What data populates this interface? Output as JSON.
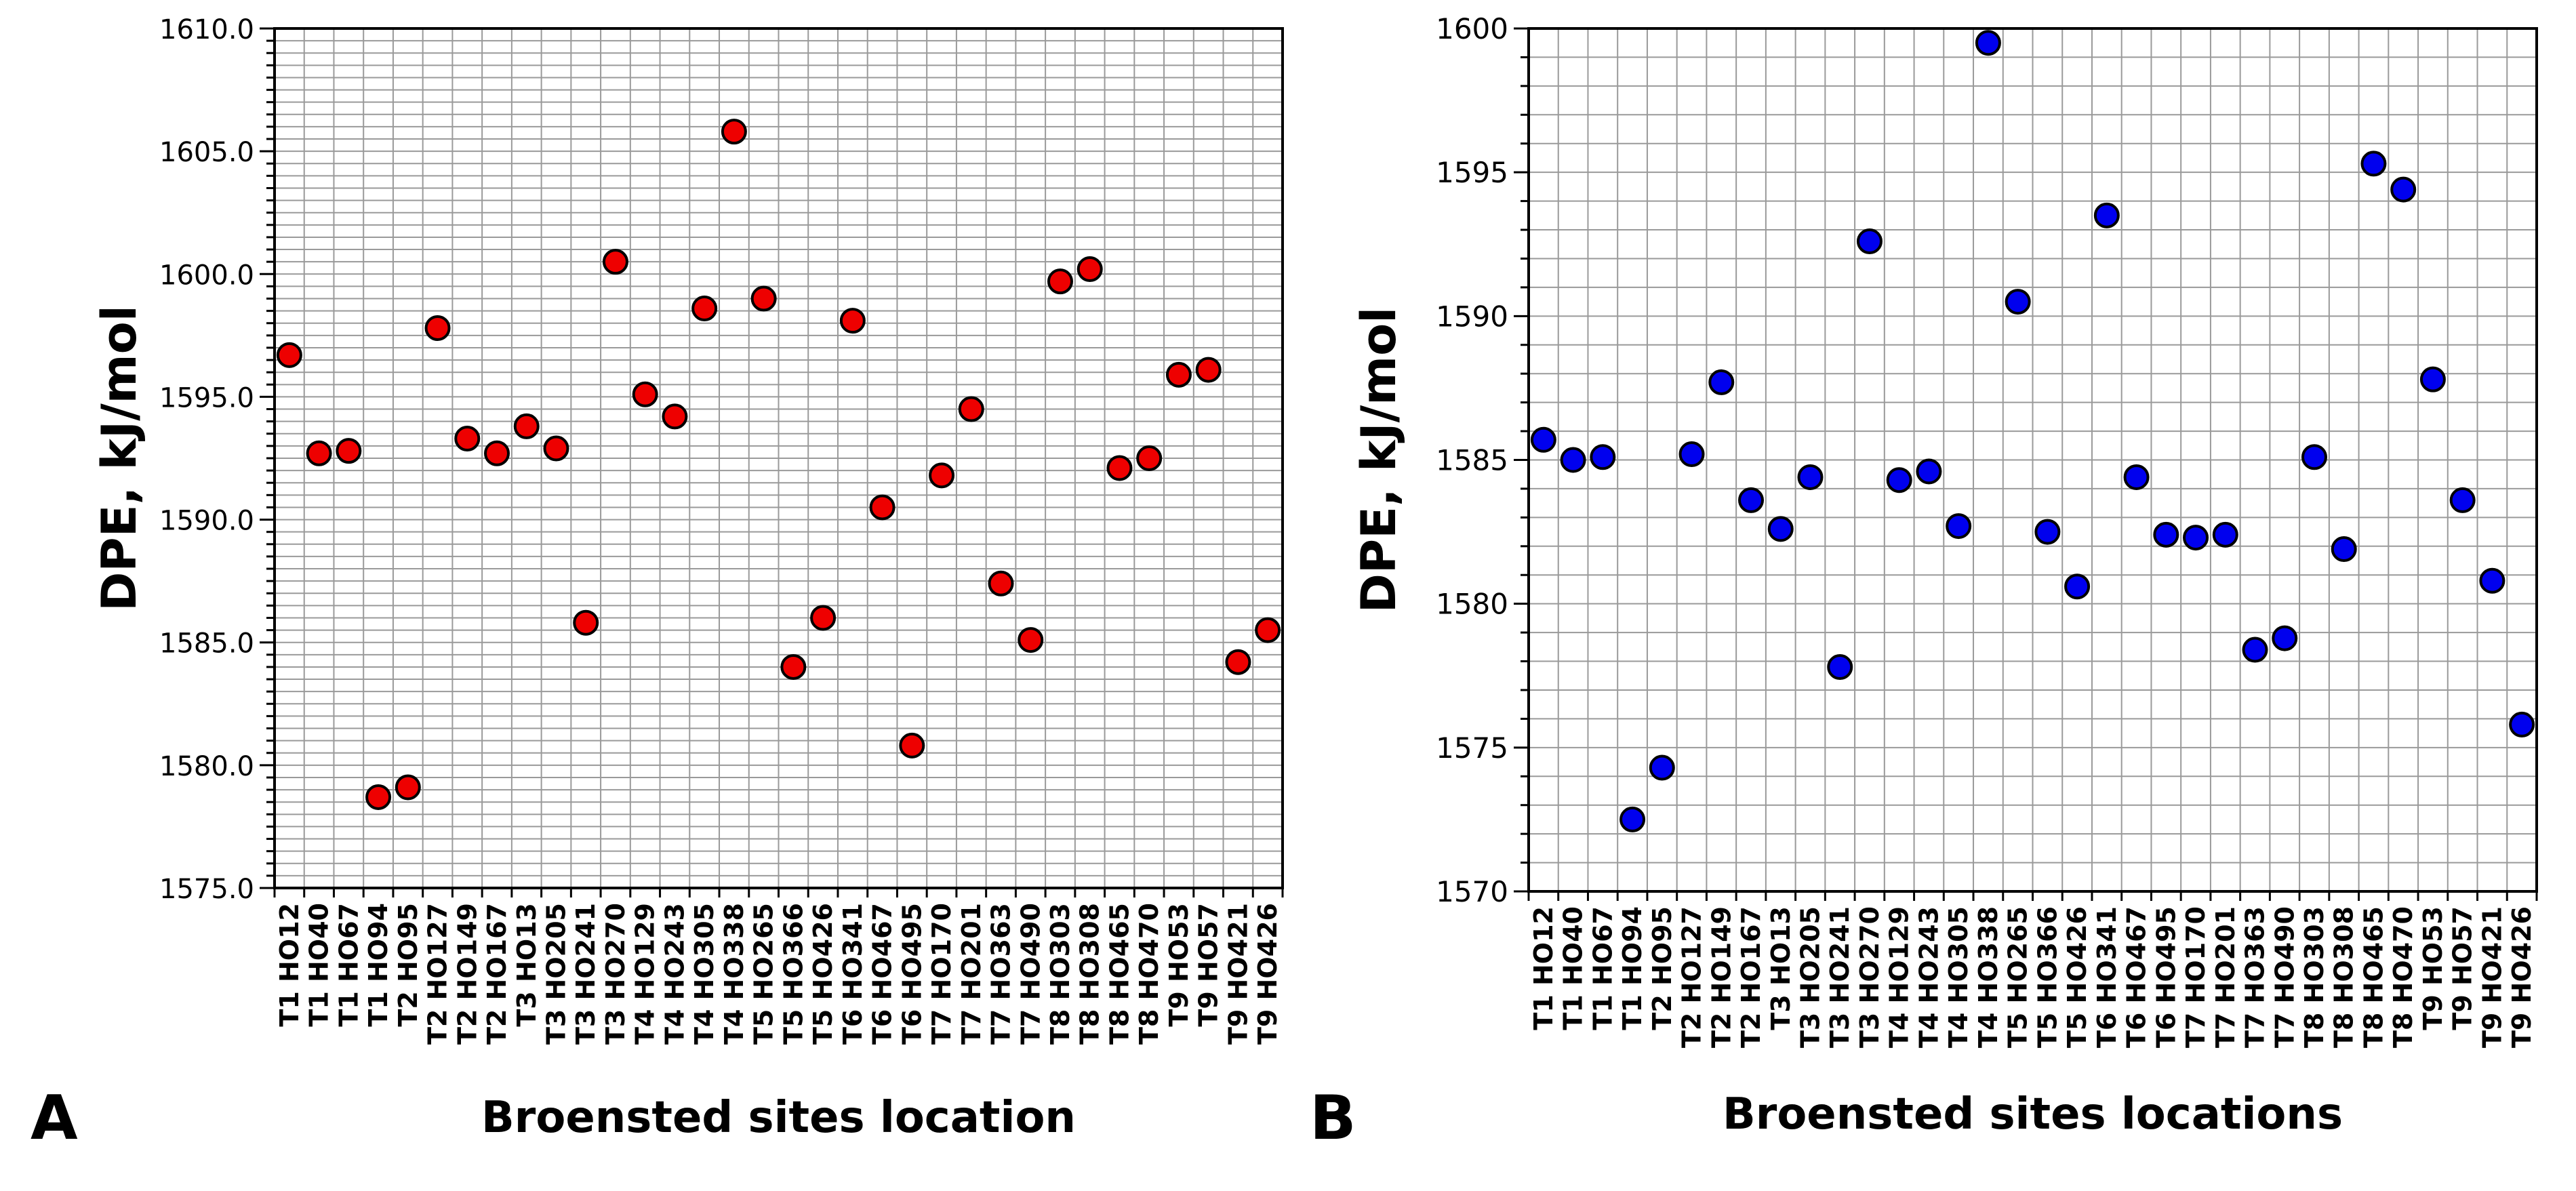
{
  "chart_data": [
    {
      "type": "scatter",
      "panel_label": "A",
      "xlabel": "Broensted sites location",
      "ylabel": "DPE, kJ/mol",
      "ylim": [
        1575.0,
        1610.0
      ],
      "ytick_labels": [
        "1575.0",
        "1580.0",
        "1585.0",
        "1590.0",
        "1595.0",
        "1600.0",
        "1605.0",
        "1610.0"
      ],
      "categories": [
        "T1 HO12",
        "T1 HO40",
        "T1 HO67",
        "T1 HO94",
        "T2 HO95",
        "T2 HO127",
        "T2 HO149",
        "T2 HO167",
        "T3 HO13",
        "T3 HO205",
        "T3 HO241",
        "T3 HO270",
        "T4 HO129",
        "T4 HO243",
        "T4 HO305",
        "T4 HO338",
        "T5 HO265",
        "T5 HO366",
        "T5 HO426",
        "T6 HO341",
        "T6 HO467",
        "T6 HO495",
        "T7 HO170",
        "T7 HO201",
        "T7 HO363",
        "T7 HO490",
        "T8 HO303",
        "T8 HO308",
        "T8 HO465",
        "T8 HO470",
        "T9 HO53",
        "T9 HO57",
        "T9 HO421",
        "T9 HO426"
      ],
      "values": [
        1596.7,
        1592.7,
        1592.8,
        1578.7,
        1579.1,
        1597.8,
        1593.3,
        1592.7,
        1593.8,
        1592.9,
        1585.8,
        1600.5,
        1595.1,
        1594.2,
        1598.6,
        1605.8,
        1599.0,
        1584.0,
        1586.0,
        1598.1,
        1590.5,
        1580.8,
        1591.8,
        1594.5,
        1587.4,
        1585.1,
        1599.7,
        1600.2,
        1592.1,
        1592.5,
        1595.9,
        1596.1,
        1584.2,
        1585.5
      ],
      "marker_color": "#ee0000",
      "grid": true
    },
    {
      "type": "scatter",
      "panel_label": "B",
      "xlabel": "Broensted sites locations",
      "ylabel": "DPE, kJ/mol",
      "ylim": [
        1570,
        1600
      ],
      "ytick_labels": [
        "1570",
        "1575",
        "1580",
        "1585",
        "1590",
        "1595",
        "1600"
      ],
      "categories": [
        "T1 HO12",
        "T1 HO40",
        "T1 HO67",
        "T1 HO94",
        "T2 HO95",
        "T2 HO127",
        "T2 HO149",
        "T2 HO167",
        "T3 HO13",
        "T3 HO205",
        "T3 HO241",
        "T3 HO270",
        "T4 HO129",
        "T4 HO243",
        "T4 HO305",
        "T4 HO338",
        "T5 HO265",
        "T5 HO366",
        "T5 HO426",
        "T6 HO341",
        "T6 HO467",
        "T6 HO495",
        "T7 HO170",
        "T7 HO201",
        "T7 HO363",
        "T7 HO490",
        "T8 HO303",
        "T8 HO308",
        "T8 HO465",
        "T8 HO470",
        "T9 HO53",
        "T9 HO57",
        "T9 HO421",
        "T9 HO426"
      ],
      "values": [
        1585.7,
        1585.0,
        1585.1,
        1572.5,
        1574.3,
        1585.2,
        1587.7,
        1583.6,
        1582.6,
        1584.4,
        1577.8,
        1592.6,
        1584.3,
        1584.6,
        1582.7,
        1599.5,
        1590.5,
        1582.5,
        1580.6,
        1593.5,
        1584.4,
        1582.4,
        1582.3,
        1582.4,
        1578.4,
        1578.8,
        1585.1,
        1581.9,
        1595.3,
        1594.4,
        1587.8,
        1583.6,
        1580.8,
        1575.8
      ],
      "marker_color": "#0000ee",
      "grid": true
    }
  ]
}
